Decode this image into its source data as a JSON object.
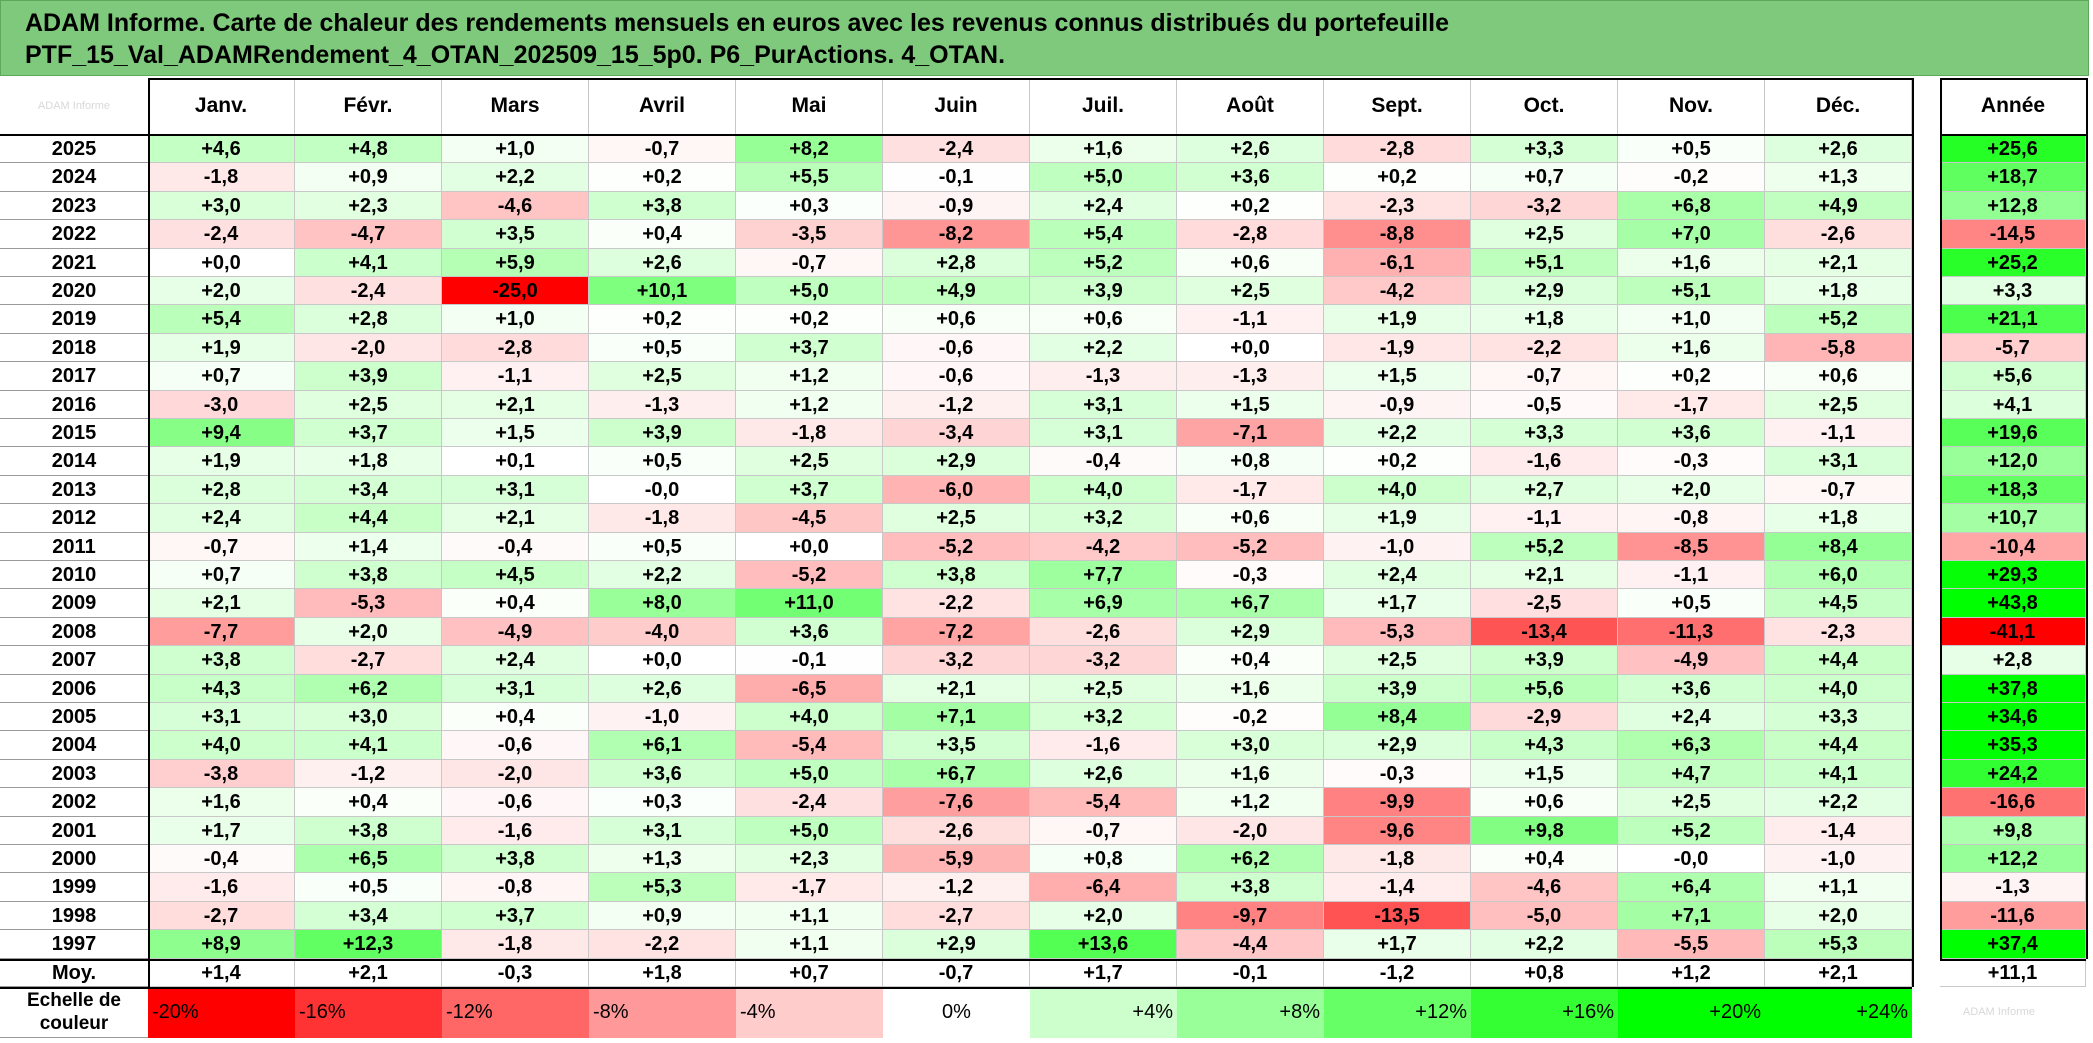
{
  "title": {
    "line1": "ADAM Informe. Carte de chaleur des rendements mensuels en euros avec les revenus connus distribués du portefeuille",
    "line2": "PTF_15_Val_ADAMRendement_4_OTAN_202509_15_5p0. P6_PurActions. 4_OTAN."
  },
  "corner_watermark": "ADAM Informe",
  "bottom_watermark": "ADAM Informe",
  "scale_label": "Echelle de couleur",
  "chart_data": {
    "type": "heatmap",
    "title": "Carte de chaleur des rendements mensuels en euros",
    "months": [
      "Janv.",
      "Févr.",
      "Mars",
      "Avril",
      "Mai",
      "Juin",
      "Juil.",
      "Août",
      "Sept.",
      "Oct.",
      "Nov.",
      "Déc."
    ],
    "year_header": "Année",
    "rows": [
      {
        "year": "2025",
        "values": [
          "+4,6",
          "+4,8",
          "+1,0",
          "-0,7",
          "+8,2",
          "-2,4",
          "+1,6",
          "+2,6",
          "-2,8",
          "+3,3",
          "+0,5",
          "+2,6"
        ],
        "annual": "+25,6"
      },
      {
        "year": "2024",
        "values": [
          "-1,8",
          "+0,9",
          "+2,2",
          "+0,2",
          "+5,5",
          "-0,1",
          "+5,0",
          "+3,6",
          "+0,2",
          "+0,7",
          "-0,2",
          "+1,3"
        ],
        "annual": "+18,7"
      },
      {
        "year": "2023",
        "values": [
          "+3,0",
          "+2,3",
          "-4,6",
          "+3,8",
          "+0,3",
          "-0,9",
          "+2,4",
          "+0,2",
          "-2,3",
          "-3,2",
          "+6,8",
          "+4,9"
        ],
        "annual": "+12,8"
      },
      {
        "year": "2022",
        "values": [
          "-2,4",
          "-4,7",
          "+3,5",
          "+0,4",
          "-3,5",
          "-8,2",
          "+5,4",
          "-2,8",
          "-8,8",
          "+2,5",
          "+7,0",
          "-2,6"
        ],
        "annual": "-14,5"
      },
      {
        "year": "2021",
        "values": [
          "+0,0",
          "+4,1",
          "+5,9",
          "+2,6",
          "-0,7",
          "+2,8",
          "+5,2",
          "+0,6",
          "-6,1",
          "+5,1",
          "+1,6",
          "+2,1"
        ],
        "annual": "+25,2"
      },
      {
        "year": "2020",
        "values": [
          "+2,0",
          "-2,4",
          "-25,0",
          "+10,1",
          "+5,0",
          "+4,9",
          "+3,9",
          "+2,5",
          "-4,2",
          "+2,9",
          "+5,1",
          "+1,8"
        ],
        "annual": "+3,3"
      },
      {
        "year": "2019",
        "values": [
          "+5,4",
          "+2,8",
          "+1,0",
          "+0,2",
          "+0,2",
          "+0,6",
          "+0,6",
          "-1,1",
          "+1,9",
          "+1,8",
          "+1,0",
          "+5,2"
        ],
        "annual": "+21,1"
      },
      {
        "year": "2018",
        "values": [
          "+1,9",
          "-2,0",
          "-2,8",
          "+0,5",
          "+3,7",
          "-0,6",
          "+2,2",
          "+0,0",
          "-1,9",
          "-2,2",
          "+1,6",
          "-5,8"
        ],
        "annual": "-5,7"
      },
      {
        "year": "2017",
        "values": [
          "+0,7",
          "+3,9",
          "-1,1",
          "+2,5",
          "+1,2",
          "-0,6",
          "-1,3",
          "-1,3",
          "+1,5",
          "-0,7",
          "+0,2",
          "+0,6"
        ],
        "annual": "+5,6"
      },
      {
        "year": "2016",
        "values": [
          "-3,0",
          "+2,5",
          "+2,1",
          "-1,3",
          "+1,2",
          "-1,2",
          "+3,1",
          "+1,5",
          "-0,9",
          "-0,5",
          "-1,7",
          "+2,5"
        ],
        "annual": "+4,1"
      },
      {
        "year": "2015",
        "values": [
          "+9,4",
          "+3,7",
          "+1,5",
          "+3,9",
          "-1,8",
          "-3,4",
          "+3,1",
          "-7,1",
          "+2,2",
          "+3,3",
          "+3,6",
          "-1,1"
        ],
        "annual": "+19,6"
      },
      {
        "year": "2014",
        "values": [
          "+1,9",
          "+1,8",
          "+0,1",
          "+0,5",
          "+2,5",
          "+2,9",
          "-0,4",
          "+0,8",
          "+0,2",
          "-1,6",
          "-0,3",
          "+3,1"
        ],
        "annual": "+12,0"
      },
      {
        "year": "2013",
        "values": [
          "+2,8",
          "+3,4",
          "+3,1",
          "-0,0",
          "+3,7",
          "-6,0",
          "+4,0",
          "-1,7",
          "+4,0",
          "+2,7",
          "+2,0",
          "-0,7"
        ],
        "annual": "+18,3"
      },
      {
        "year": "2012",
        "values": [
          "+2,4",
          "+4,4",
          "+2,1",
          "-1,8",
          "-4,5",
          "+2,5",
          "+3,2",
          "+0,6",
          "+1,9",
          "-1,1",
          "-0,8",
          "+1,8"
        ],
        "annual": "+10,7"
      },
      {
        "year": "2011",
        "values": [
          "-0,7",
          "+1,4",
          "-0,4",
          "+0,5",
          "+0,0",
          "-5,2",
          "-4,2",
          "-5,2",
          "-1,0",
          "+5,2",
          "-8,5",
          "+8,4"
        ],
        "annual": "-10,4"
      },
      {
        "year": "2010",
        "values": [
          "+0,7",
          "+3,8",
          "+4,5",
          "+2,2",
          "-5,2",
          "+3,8",
          "+7,7",
          "-0,3",
          "+2,4",
          "+2,1",
          "-1,1",
          "+6,0"
        ],
        "annual": "+29,3"
      },
      {
        "year": "2009",
        "values": [
          "+2,1",
          "-5,3",
          "+0,4",
          "+8,0",
          "+11,0",
          "-2,2",
          "+6,9",
          "+6,7",
          "+1,7",
          "-2,5",
          "+0,5",
          "+4,5"
        ],
        "annual": "+43,8"
      },
      {
        "year": "2008",
        "values": [
          "-7,7",
          "+2,0",
          "-4,9",
          "-4,0",
          "+3,6",
          "-7,2",
          "-2,6",
          "+2,9",
          "-5,3",
          "-13,4",
          "-11,3",
          "-2,3"
        ],
        "annual": "-41,1"
      },
      {
        "year": "2007",
        "values": [
          "+3,8",
          "-2,7",
          "+2,4",
          "+0,0",
          "-0,1",
          "-3,2",
          "-3,2",
          "+0,4",
          "+2,5",
          "+3,9",
          "-4,9",
          "+4,4"
        ],
        "annual": "+2,8"
      },
      {
        "year": "2006",
        "values": [
          "+4,3",
          "+6,2",
          "+3,1",
          "+2,6",
          "-6,5",
          "+2,1",
          "+2,5",
          "+1,6",
          "+3,9",
          "+5,6",
          "+3,6",
          "+4,0"
        ],
        "annual": "+37,8"
      },
      {
        "year": "2005",
        "values": [
          "+3,1",
          "+3,0",
          "+0,4",
          "-1,0",
          "+4,0",
          "+7,1",
          "+3,2",
          "-0,2",
          "+8,4",
          "-2,9",
          "+2,4",
          "+3,3"
        ],
        "annual": "+34,6"
      },
      {
        "year": "2004",
        "values": [
          "+4,0",
          "+4,1",
          "-0,6",
          "+6,1",
          "-5,4",
          "+3,5",
          "-1,6",
          "+3,0",
          "+2,9",
          "+4,3",
          "+6,3",
          "+4,4"
        ],
        "annual": "+35,3"
      },
      {
        "year": "2003",
        "values": [
          "-3,8",
          "-1,2",
          "-2,0",
          "+3,6",
          "+5,0",
          "+6,7",
          "+2,6",
          "+1,6",
          "-0,3",
          "+1,5",
          "+4,7",
          "+4,1"
        ],
        "annual": "+24,2"
      },
      {
        "year": "2002",
        "values": [
          "+1,6",
          "+0,4",
          "-0,6",
          "+0,3",
          "-2,4",
          "-7,6",
          "-5,4",
          "+1,2",
          "-9,9",
          "+0,6",
          "+2,5",
          "+2,2"
        ],
        "annual": "-16,6"
      },
      {
        "year": "2001",
        "values": [
          "+1,7",
          "+3,8",
          "-1,6",
          "+3,1",
          "+5,0",
          "-2,6",
          "-0,7",
          "-2,0",
          "-9,6",
          "+9,8",
          "+5,2",
          "-1,4"
        ],
        "annual": "+9,8"
      },
      {
        "year": "2000",
        "values": [
          "-0,4",
          "+6,5",
          "+3,8",
          "+1,3",
          "+2,3",
          "-5,9",
          "+0,8",
          "+6,2",
          "-1,8",
          "+0,4",
          "-0,0",
          "-1,0"
        ],
        "annual": "+12,2"
      },
      {
        "year": "1999",
        "values": [
          "-1,6",
          "+0,5",
          "-0,8",
          "+5,3",
          "-1,7",
          "-1,2",
          "-6,4",
          "+3,8",
          "-1,4",
          "-4,6",
          "+6,4",
          "+1,1"
        ],
        "annual": "-1,3"
      },
      {
        "year": "1998",
        "values": [
          "-2,7",
          "+3,4",
          "+3,7",
          "+0,9",
          "+1,1",
          "-2,7",
          "+2,0",
          "-9,7",
          "-13,5",
          "-5,0",
          "+7,1",
          "+2,0"
        ],
        "annual": "-11,6"
      },
      {
        "year": "1997",
        "values": [
          "+8,9",
          "+12,3",
          "-1,8",
          "-2,2",
          "+1,1",
          "+2,9",
          "+13,6",
          "-4,4",
          "+1,7",
          "+2,2",
          "-5,5",
          "+5,3"
        ],
        "annual": "+37,4"
      }
    ],
    "average": {
      "label": "Moy.",
      "values": [
        "+1,4",
        "+2,1",
        "-0,3",
        "+1,8",
        "+0,7",
        "-0,7",
        "+1,7",
        "-0,1",
        "-1,2",
        "+0,8",
        "+1,2",
        "+2,1"
      ],
      "annual": "+11,1"
    },
    "color_scale": [
      "-20%",
      "-16%",
      "-12%",
      "-8%",
      "-4%",
      "0%",
      "+4%",
      "+8%",
      "+12%",
      "+16%",
      "+20%",
      "+24%"
    ],
    "colors": {
      "negative": "#ff0000",
      "zero": "#ffffff",
      "positive": "#00ff00",
      "title_bg": "#7ec97c"
    }
  }
}
